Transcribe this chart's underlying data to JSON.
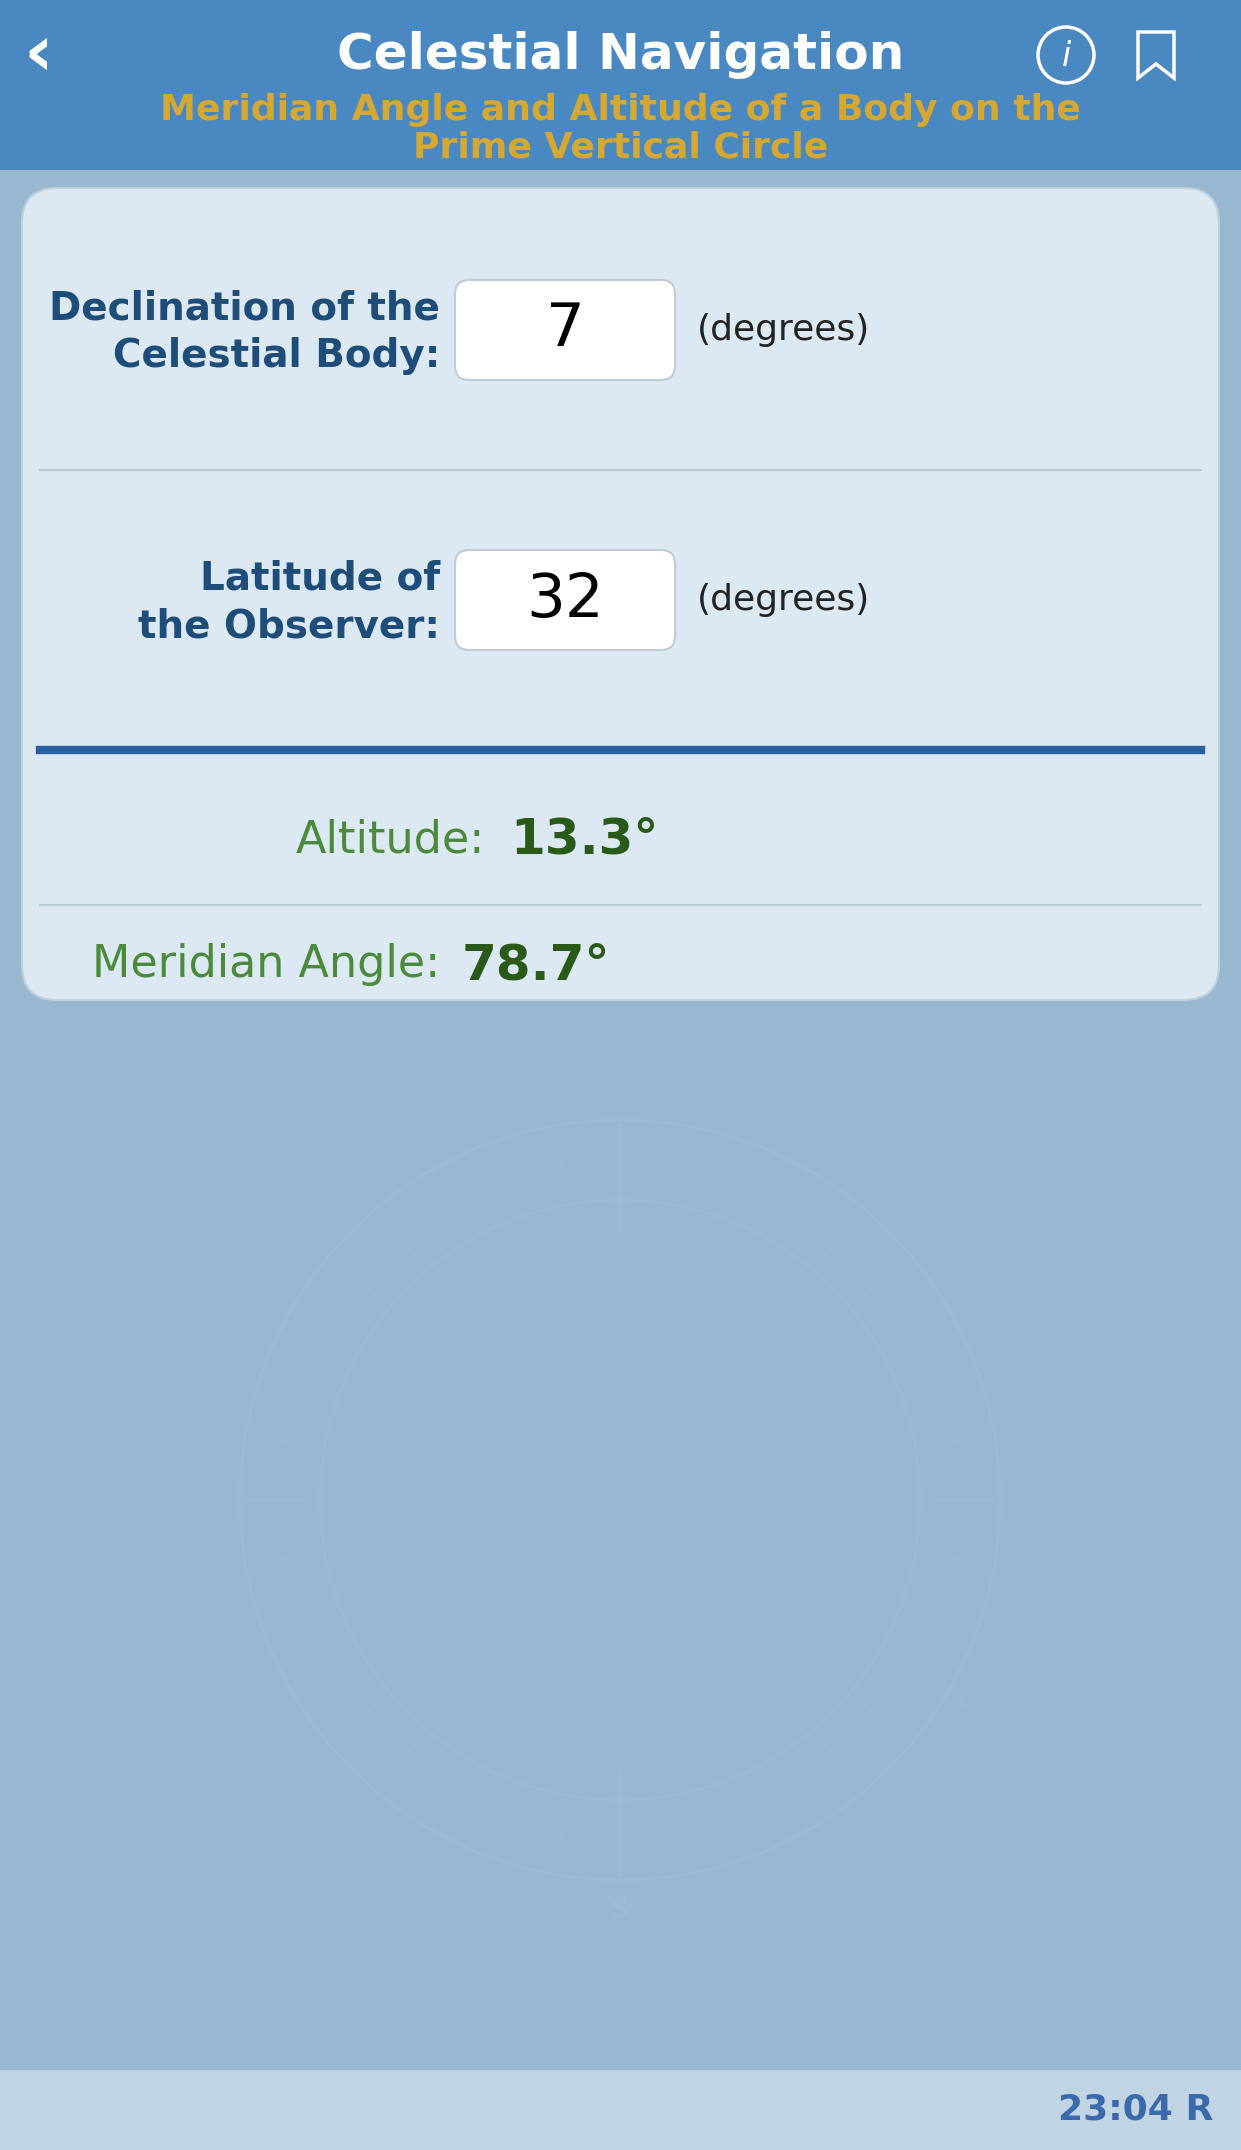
{
  "bg_header_color": "#4a88c2",
  "bg_body_color": "#98b8d0",
  "bg_card_color": "#dce8f2",
  "nav_title": "Celestial Navigation",
  "subtitle_line1": "Meridian Angle and Altitude of a Body on the",
  "subtitle_line2": "Prime Vertical Circle",
  "subtitle_color": "#d4a832",
  "nav_title_color": "#ffffff",
  "label1_line1": "Declination of the",
  "label1_line2": "Celestial Body:",
  "label2_line1": "Latitude of",
  "label2_line2": "the Observer:",
  "label_color": "#1e4d7a",
  "input1_value": "7",
  "input2_value": "32",
  "input_box_color": "#ffffff",
  "degrees_label": "(degrees)",
  "degrees_color": "#222222",
  "divider_color_light": "#b8ccd8",
  "divider_color_dark": "#2a5fa0",
  "altitude_label": "Altitude:",
  "altitude_value": "13.3°",
  "meridian_label": "Meridian Angle:",
  "meridian_value": "78.7°",
  "result_label_color": "#4a8a3a",
  "result_value_color": "#2a5a1a",
  "time_text": "23:04 R",
  "time_color": "#3a6aaa",
  "footer_color": "#c0d4e4",
  "compass_color": "#a0bcd0"
}
